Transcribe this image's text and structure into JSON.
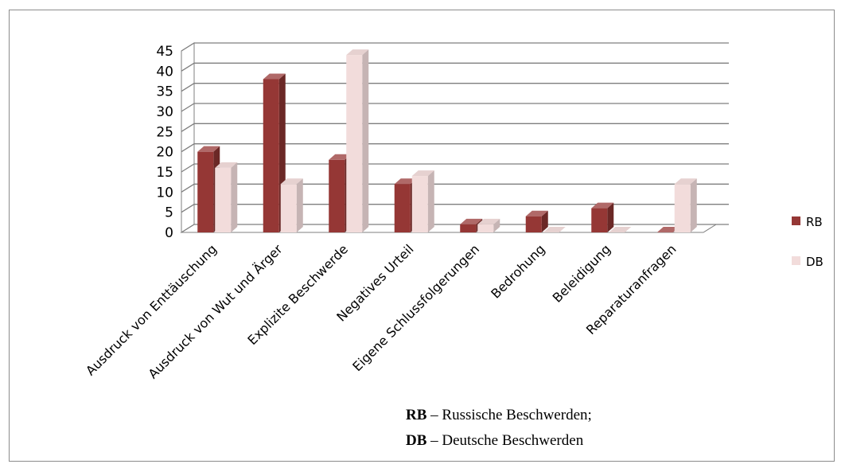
{
  "chart_data": {
    "type": "bar",
    "three_d": true,
    "categories": [
      "Ausdruck von Enttäuschung",
      "Ausdruck von Wut und Ärger",
      "Explizite Beschwerde",
      "Negatives Urteil",
      "Eigene Schlussfolgerungen",
      "Bedrohung",
      "Beleidigung",
      "Reparaturanfragen"
    ],
    "series": [
      {
        "name": "RB",
        "values": [
          20,
          38,
          18,
          12,
          2,
          4,
          6,
          0
        ],
        "color": "#953735"
      },
      {
        "name": "DB",
        "values": [
          16,
          12,
          44,
          14,
          2,
          0,
          0,
          12
        ],
        "color": "#f2dcdb"
      }
    ],
    "yticks": [
      0,
      5,
      10,
      15,
      20,
      25,
      30,
      35,
      40,
      45
    ],
    "ylim": [
      0,
      45
    ],
    "grid": true,
    "legend_position": "right"
  },
  "note": {
    "line1": {
      "abbr": "RB",
      "text": " – Russische Beschwerden;"
    },
    "line2": {
      "abbr": "DB",
      "text": " – Deutsche Beschwerden"
    }
  }
}
